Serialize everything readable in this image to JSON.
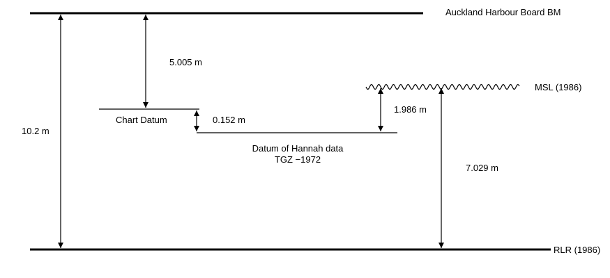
{
  "levels": {
    "auckland_bm": "Auckland Harbour Board BM",
    "msl": "MSL (1986)",
    "rlr": "RLR (1986)",
    "chart_datum": "Chart Datum",
    "hannah_datum_line1": "Datum of Hannah data",
    "hannah_datum_line2": "TGZ −1972"
  },
  "measurements": {
    "bm_to_chart_datum": "5.005 m",
    "chart_to_hannah": "0.152 m",
    "msl_to_hannah": "1.986 m",
    "bm_to_rlr": "10.2 m",
    "msl_to_rlr": "7.029 m"
  }
}
